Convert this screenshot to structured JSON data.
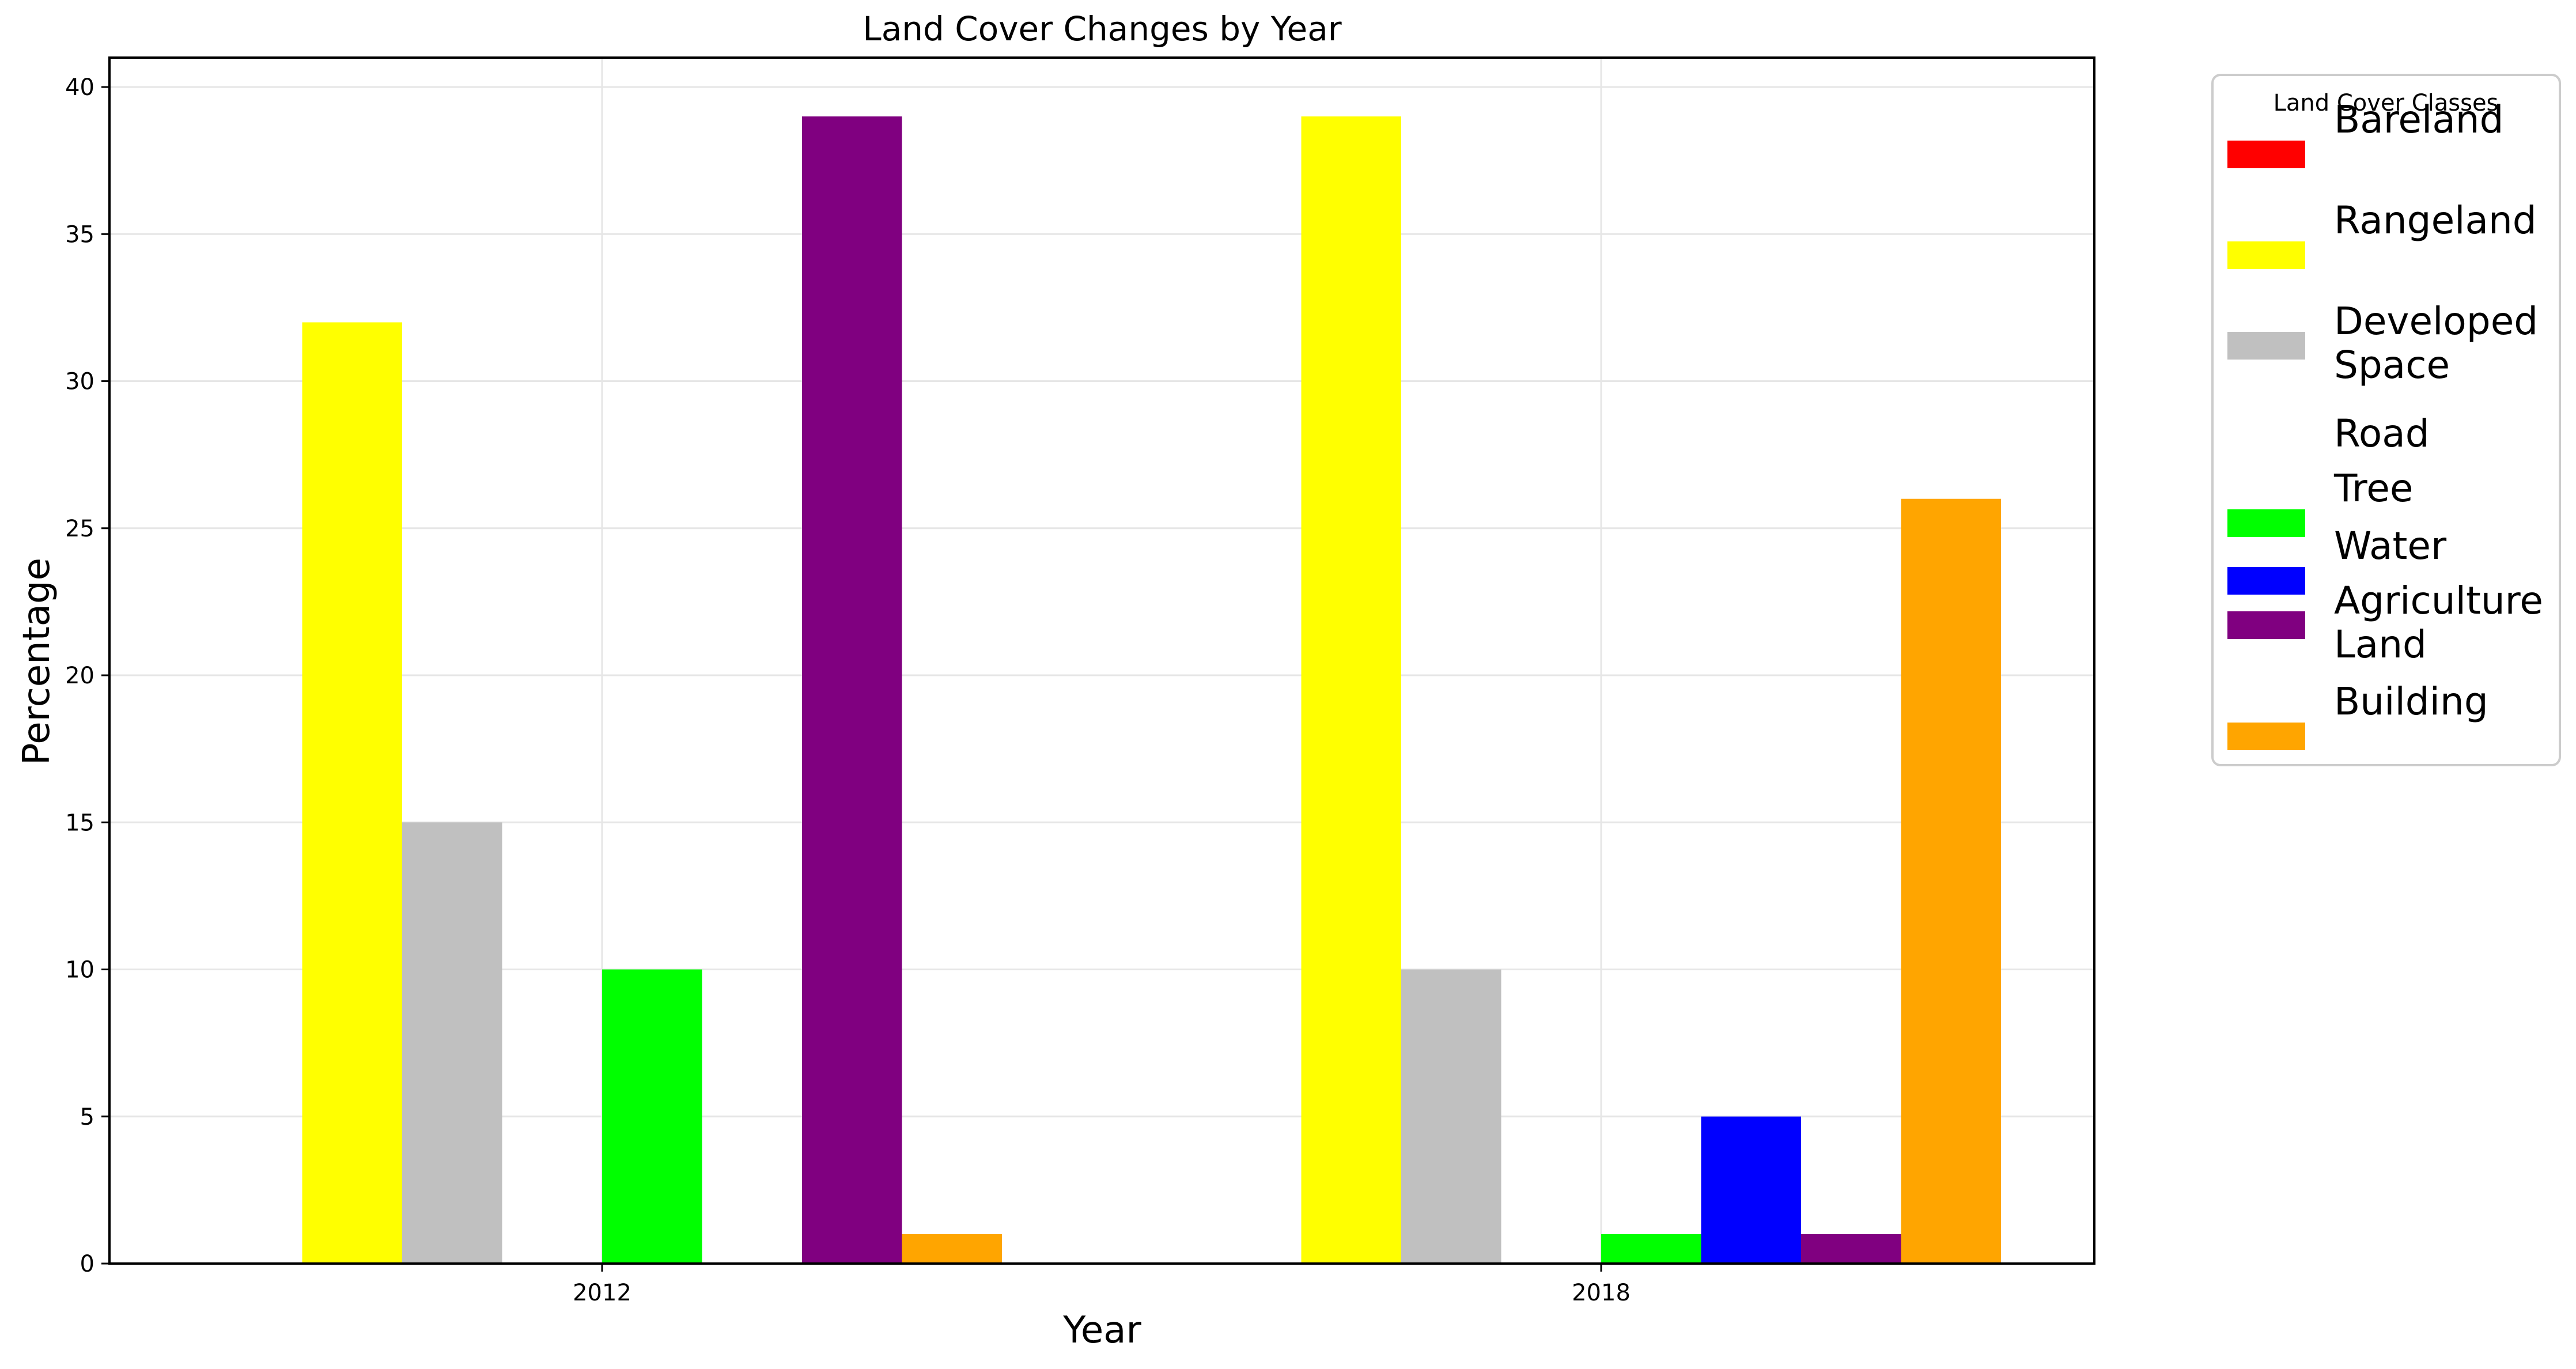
{
  "chart_data": {
    "type": "bar",
    "title": "Land Cover Changes by Year",
    "xlabel": "Year",
    "ylabel": "Percentage",
    "categories": [
      "2012",
      "2018"
    ],
    "ylim": [
      0,
      41
    ],
    "yticks": [
      0,
      5,
      10,
      15,
      20,
      25,
      30,
      35,
      40
    ],
    "grid": true,
    "legend_title": "Land Cover Classes",
    "legend_position": "outside right, top",
    "series": [
      {
        "name": "Bareland",
        "lines": [
          "Bareland"
        ],
        "color": "#ff0000",
        "values": [
          0,
          0
        ]
      },
      {
        "name": "Rangeland",
        "lines": [
          "Rangeland"
        ],
        "color": "#ffff00",
        "values": [
          32,
          39
        ]
      },
      {
        "name": "Developed Space",
        "lines": [
          "Developed",
          "Space"
        ],
        "color": "#c0c0c0",
        "values": [
          15,
          10
        ]
      },
      {
        "name": "Road",
        "lines": [
          "Road"
        ],
        "color": "#ffffff",
        "values": [
          0,
          0
        ]
      },
      {
        "name": "Tree",
        "lines": [
          "Tree"
        ],
        "color": "#00ff00",
        "values": [
          10,
          1
        ]
      },
      {
        "name": "Water",
        "lines": [
          "Water"
        ],
        "color": "#0000ff",
        "values": [
          0,
          5
        ]
      },
      {
        "name": "Agriculture Land",
        "lines": [
          "Agriculture",
          "Land"
        ],
        "color": "#800080",
        "values": [
          39,
          1
        ]
      },
      {
        "name": "Building",
        "lines": [
          "Building"
        ],
        "color": "#ffa500",
        "values": [
          1,
          26
        ]
      }
    ]
  }
}
